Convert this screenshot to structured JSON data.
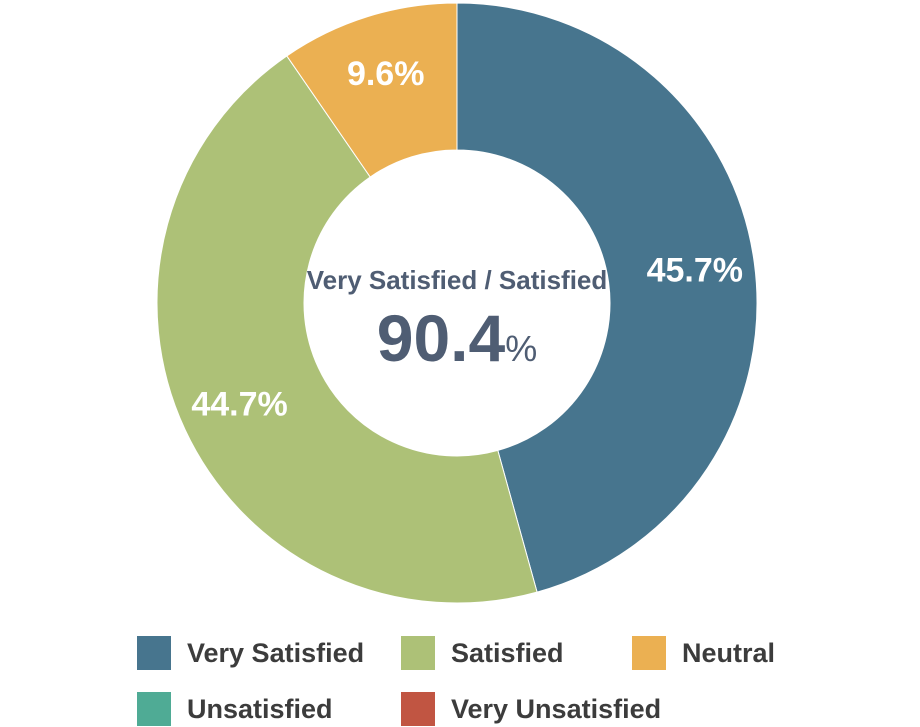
{
  "chart_data": {
    "type": "pie",
    "variant": "donut",
    "categories": [
      "Very Satisfied",
      "Satisfied",
      "Neutral",
      "Unsatisfied",
      "Very Unsatisfied"
    ],
    "values": [
      45.7,
      44.7,
      9.6,
      0,
      0
    ],
    "labels": [
      "45.7%",
      "44.7%",
      "9.6%",
      "",
      ""
    ],
    "colors": [
      "#47758e",
      "#adc177",
      "#ebb052",
      "#4fab95",
      "#c15542"
    ],
    "center_caption": "Very Satisfied / Satisfied",
    "center_value": "90.4",
    "center_unit": "%",
    "legend_placement": "bottom"
  }
}
